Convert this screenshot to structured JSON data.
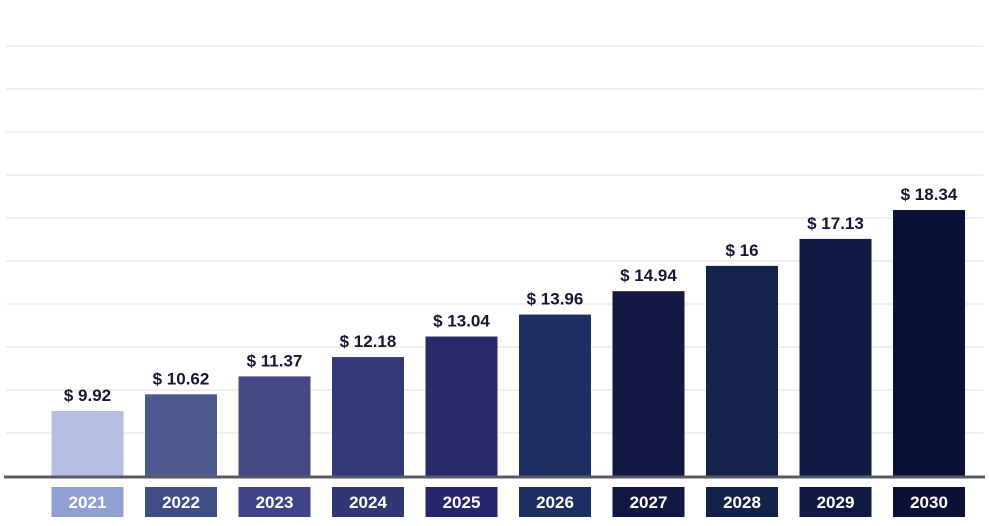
{
  "chart_data": {
    "type": "bar",
    "categories": [
      "2021",
      "2022",
      "2023",
      "2024",
      "2025",
      "2026",
      "2027",
      "2028",
      "2029",
      "2030"
    ],
    "values": [
      9.92,
      10.62,
      11.37,
      12.18,
      13.04,
      13.96,
      14.94,
      16,
      17.13,
      18.34
    ],
    "value_labels": [
      "$ 9.92",
      "$ 10.62",
      "$ 11.37",
      "$ 12.18",
      "$ 13.04",
      "$ 13.96",
      "$ 14.94",
      "$ 16",
      "$ 17.13",
      "$ 18.34"
    ],
    "title": "",
    "xlabel": "",
    "ylabel": "",
    "grid": true,
    "legend": "none",
    "bar_colors": [
      "#b5bde0",
      "#4d5a8e",
      "#454a86",
      "#34397a",
      "#282a6a",
      "#1f2f62",
      "#131842",
      "#15234a",
      "#111b45",
      "#0b1238"
    ],
    "category_colors": [
      "#8f9fd2",
      "#414e85",
      "#3e4485",
      "#303772",
      "#25276a",
      "#1e2e60",
      "#121741",
      "#142249",
      "#101a44",
      "#0b1236"
    ],
    "baseline_color": "#5a5a66",
    "grid_color": "#e7e7ea"
  }
}
